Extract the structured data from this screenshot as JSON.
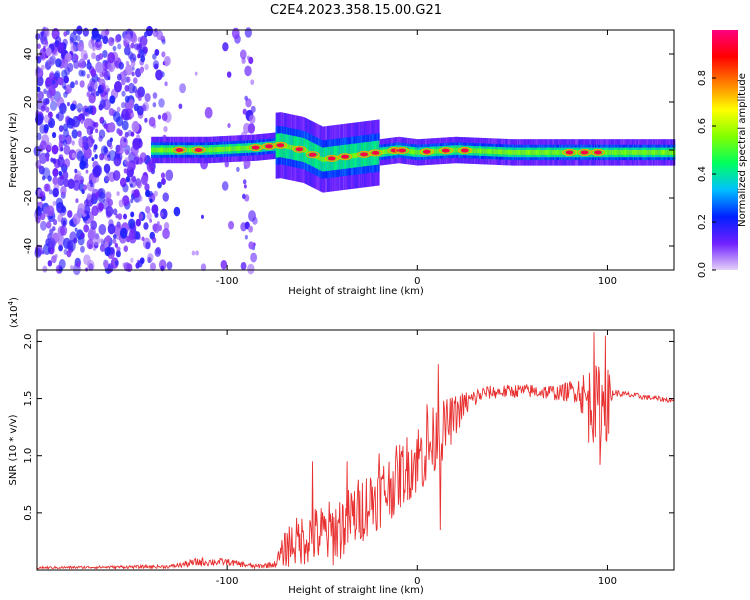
{
  "figure_title": "C2E4.2023.358.15.00.G21",
  "chart_data": [
    {
      "type": "heatmap",
      "title": "C2E4.2023.358.15.00.G21",
      "xlabel": "Height of straight line (km)",
      "ylabel": "Frequency (Hz)",
      "xlim": [
        -200,
        135
      ],
      "ylim": [
        -50,
        50
      ],
      "xticks": [
        -100,
        0,
        100
      ],
      "xtick_labels": [
        "-100",
        "0",
        "100"
      ],
      "yticks": [
        -40,
        -20,
        0,
        20,
        40
      ],
      "ytick_labels": [
        "-40",
        "-20",
        "0",
        "20",
        "40"
      ],
      "colorbar": {
        "label": "Normalized spectral amplitude",
        "range": [
          0,
          1
        ],
        "ticks": [
          0.0,
          0.2,
          0.4,
          0.6,
          0.8
        ],
        "tick_labels": [
          "0.0",
          "0.2",
          "0.4",
          "0.6",
          "0.8"
        ],
        "colors": [
          "#e4d2f8",
          "#7020ff",
          "#0020ff",
          "#00c0ff",
          "#00ff60",
          "#80ff00",
          "#ffff00",
          "#ff8000",
          "#ff0000",
          "#ff0080"
        ]
      },
      "noise_region": {
        "x_range": [
          -200,
          -85
        ],
        "frequency_range": [
          -50,
          50
        ],
        "amplitude_range": [
          0.05,
          0.2
        ]
      },
      "signal_band": {
        "x_start": -140,
        "x_end": 135,
        "center_freq_points": [
          {
            "x": -140,
            "f": 0
          },
          {
            "x": -110,
            "f": 0
          },
          {
            "x": -85,
            "f": 1
          },
          {
            "x": -72,
            "f": 2
          },
          {
            "x": -60,
            "f": 0
          },
          {
            "x": -50,
            "f": -4
          },
          {
            "x": -40,
            "f": -3
          },
          {
            "x": -30,
            "f": -2
          },
          {
            "x": -20,
            "f": -1
          },
          {
            "x": -10,
            "f": 0
          },
          {
            "x": 0,
            "f": -1
          },
          {
            "x": 20,
            "f": 0
          },
          {
            "x": 50,
            "f": -1
          },
          {
            "x": 100,
            "f": -1
          },
          {
            "x": 135,
            "f": -1
          }
        ],
        "peak_positions": [
          -125,
          -115,
          -85,
          -78,
          -72,
          -62,
          -55,
          -45,
          -38,
          -28,
          -22,
          -12,
          -8,
          5,
          15,
          25,
          80,
          88,
          95
        ]
      }
    },
    {
      "type": "line",
      "title": "",
      "xlabel": "Height of straight line (km)",
      "ylabel": "SNR (10 * v/v)",
      "ylabel_multiplier": "(x10",
      "ylabel_exponent": "4",
      "ylabel_close": ")",
      "xlim": [
        -200,
        135
      ],
      "ylim": [
        0,
        2.1
      ],
      "xticks": [
        -100,
        0,
        100
      ],
      "xtick_labels": [
        "-100",
        "0",
        "100"
      ],
      "yticks": [
        0.5,
        1.0,
        1.5,
        2.0
      ],
      "ytick_labels": [
        "0.5",
        "1.0",
        "1.5",
        "2.0"
      ],
      "series": [
        {
          "name": "SNR",
          "color": "#e83030",
          "envelope": [
            {
              "x": -200,
              "mean": 0.02,
              "spread": 0.01
            },
            {
              "x": -130,
              "mean": 0.03,
              "spread": 0.015
            },
            {
              "x": -115,
              "mean": 0.07,
              "spread": 0.04
            },
            {
              "x": -100,
              "mean": 0.07,
              "spread": 0.03
            },
            {
              "x": -85,
              "mean": 0.03,
              "spread": 0.02
            },
            {
              "x": -75,
              "mean": 0.05,
              "spread": 0.03
            },
            {
              "x": -68,
              "mean": 0.22,
              "spread": 0.2
            },
            {
              "x": -55,
              "mean": 0.3,
              "spread": 0.25
            },
            {
              "x": -45,
              "mean": 0.32,
              "spread": 0.3
            },
            {
              "x": -35,
              "mean": 0.45,
              "spread": 0.3
            },
            {
              "x": -25,
              "mean": 0.6,
              "spread": 0.3
            },
            {
              "x": -15,
              "mean": 0.72,
              "spread": 0.3
            },
            {
              "x": -5,
              "mean": 0.9,
              "spread": 0.3
            },
            {
              "x": 5,
              "mean": 1.05,
              "spread": 0.35
            },
            {
              "x": 15,
              "mean": 1.25,
              "spread": 0.25
            },
            {
              "x": 25,
              "mean": 1.45,
              "spread": 0.12
            },
            {
              "x": 35,
              "mean": 1.55,
              "spread": 0.06
            },
            {
              "x": 55,
              "mean": 1.57,
              "spread": 0.06
            },
            {
              "x": 75,
              "mean": 1.55,
              "spread": 0.07
            },
            {
              "x": 85,
              "mean": 1.58,
              "spread": 0.12
            },
            {
              "x": 90,
              "mean": 1.45,
              "spread": 0.35
            },
            {
              "x": 100,
              "mean": 1.45,
              "spread": 0.35
            },
            {
              "x": 103,
              "mean": 1.55,
              "spread": 0.03
            },
            {
              "x": 135,
              "mean": 1.48,
              "spread": 0.02
            }
          ],
          "spikes": [
            {
              "x": -55,
              "value": 0.95
            },
            {
              "x": -37,
              "value": 0.95
            },
            {
              "x": -20,
              "value": 1.02
            },
            {
              "x": 5,
              "value": 1.45
            },
            {
              "x": 11,
              "value": 1.8
            },
            {
              "x": 12,
              "value": 0.35
            },
            {
              "x": 93,
              "value": 2.08
            },
            {
              "x": 96,
              "value": 0.92
            },
            {
              "x": 99,
              "value": 2.05
            }
          ]
        }
      ]
    }
  ]
}
